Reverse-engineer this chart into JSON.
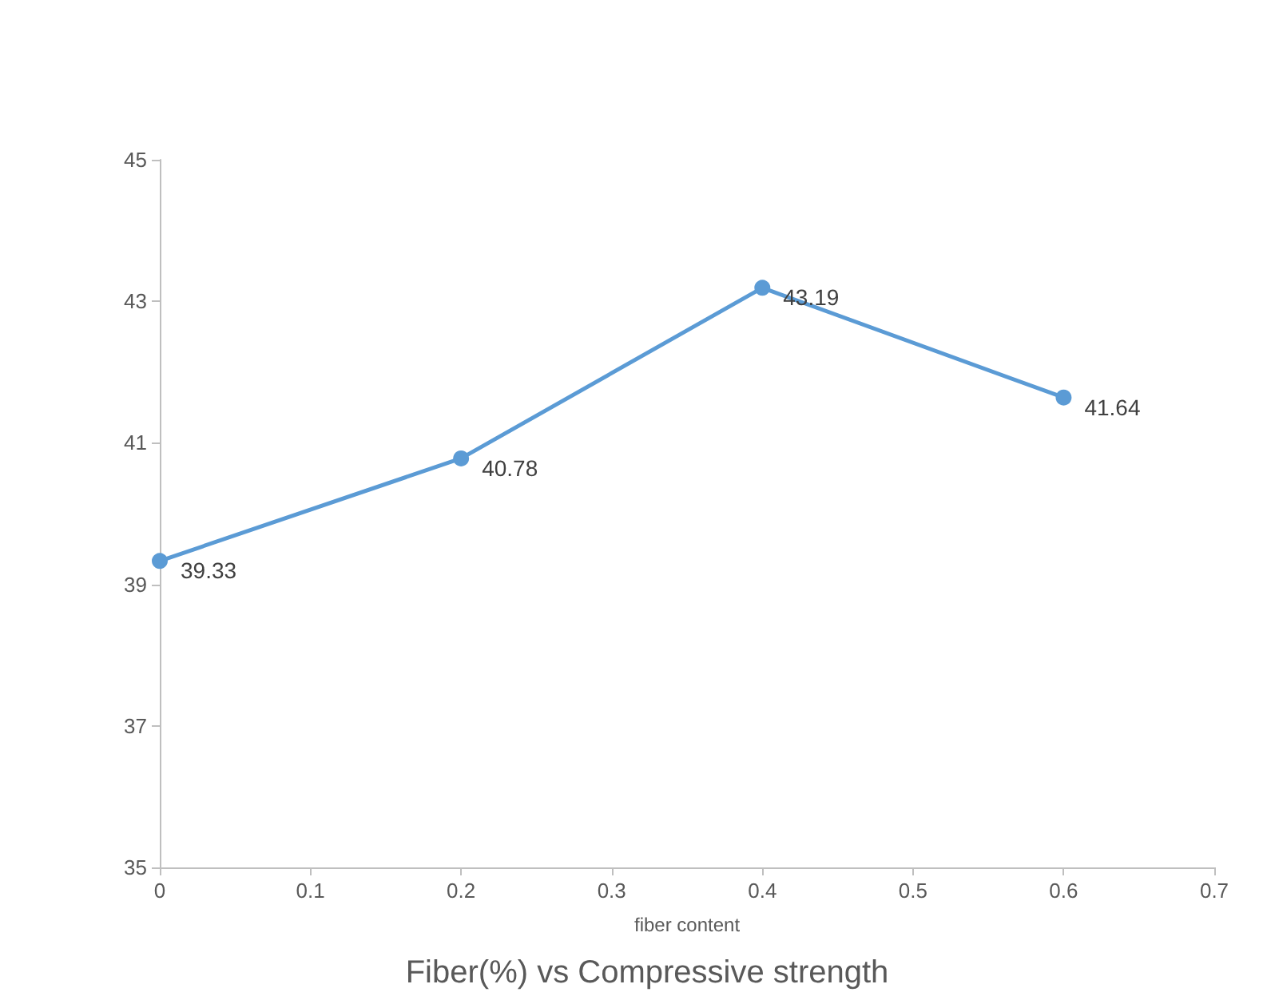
{
  "chart_data": {
    "type": "line",
    "title": "Fiber(%) vs Compressive strength",
    "xlabel": "fiber content",
    "x": [
      0,
      0.2,
      0.4,
      0.6
    ],
    "series": [
      {
        "color": "#5b9bd5",
        "values": [
          39.33,
          40.78,
          43.19,
          41.64
        ]
      }
    ],
    "xlim": [
      0,
      0.7
    ],
    "xticks": [
      0,
      0.1,
      0.2,
      0.3,
      0.4,
      0.5,
      0.6,
      0.7
    ],
    "ylim": [
      35,
      45
    ],
    "yticks": [
      35,
      37,
      39,
      41,
      43,
      45
    ],
    "grid": false,
    "marker": "circle",
    "line_style": "solid",
    "data_labels": true
  }
}
